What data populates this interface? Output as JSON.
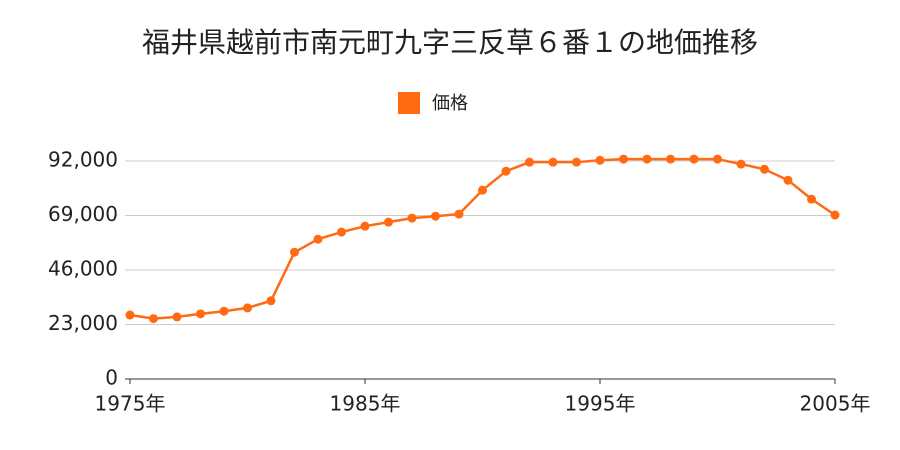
{
  "chart_data": {
    "type": "line",
    "title": "福井県越前市南元町九字三反草６番１の地価推移",
    "x": [
      1975,
      1976,
      1977,
      1978,
      1979,
      1980,
      1981,
      1982,
      1983,
      1984,
      1985,
      1986,
      1987,
      1988,
      1989,
      1990,
      1991,
      1992,
      1993,
      1994,
      1995,
      1996,
      1997,
      1998,
      1999,
      2000,
      2001,
      2002,
      2003,
      2004,
      2005
    ],
    "series": [
      {
        "name": "価格",
        "color": "#ff6a13",
        "values": [
          27000,
          25500,
          26200,
          27500,
          28600,
          30000,
          33000,
          53500,
          59000,
          62000,
          64500,
          66200,
          67900,
          68700,
          69600,
          79700,
          87700,
          91500,
          91500,
          91500,
          92300,
          92800,
          92800,
          92800,
          92800,
          92800,
          90700,
          88500,
          83900,
          75900,
          69200
        ]
      }
    ],
    "xlim": [
      1975,
      2005
    ],
    "xticks": [
      {
        "value": 1975,
        "label": "1975年"
      },
      {
        "value": 1985,
        "label": "1985年"
      },
      {
        "value": 1995,
        "label": "1995年"
      },
      {
        "value": 2005,
        "label": "2005年"
      }
    ],
    "ylim": [
      0,
      92000
    ],
    "yticks": [
      0,
      {
        "value": 23000,
        "label": "23,000"
      },
      {
        "value": 46000,
        "label": "46,000"
      },
      {
        "value": 69000,
        "label": "69,000"
      },
      {
        "value": 92000,
        "label": "92,000"
      }
    ],
    "grid": true,
    "legend": "top"
  }
}
